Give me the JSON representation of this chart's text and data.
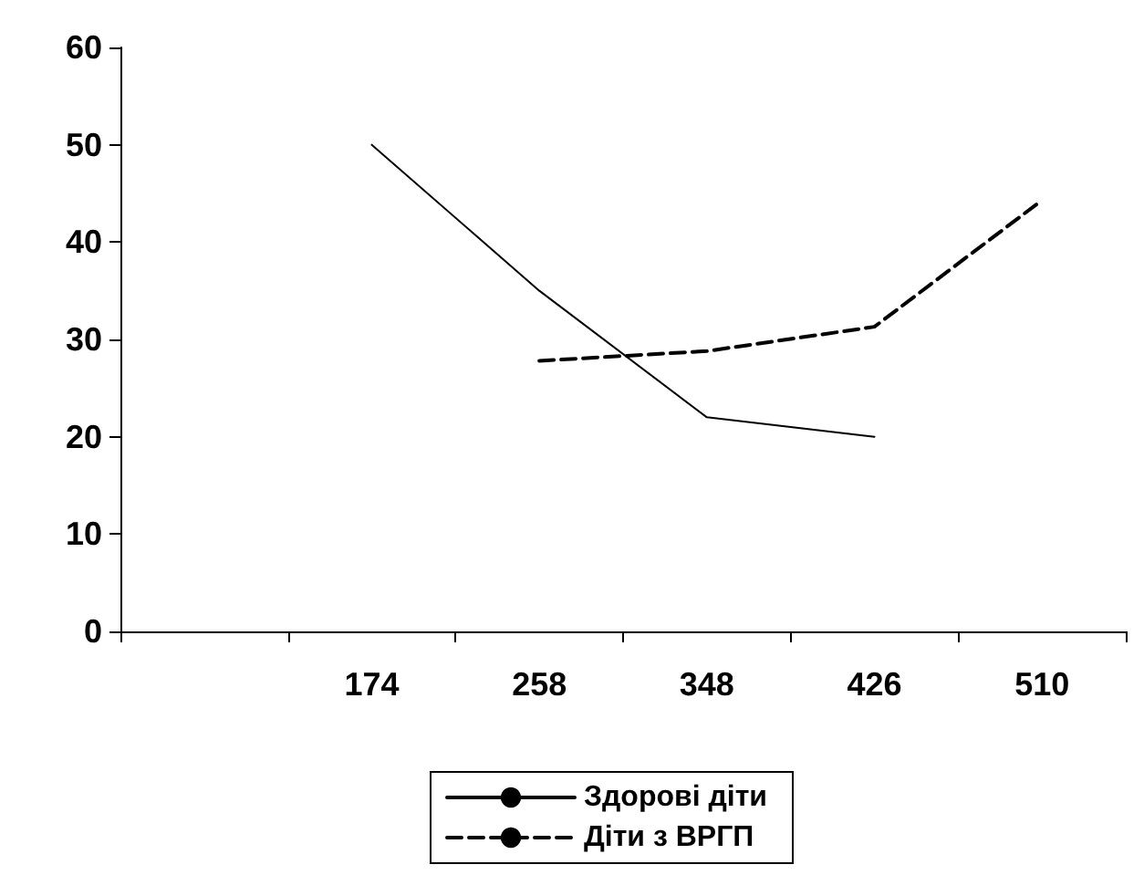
{
  "chart_data": {
    "type": "line",
    "categories": [
      null,
      "174",
      "258",
      "348",
      "426",
      "510"
    ],
    "series": [
      {
        "name": "Здорові діти",
        "color": "#000000",
        "line_style": "solid",
        "values": [
          null,
          50,
          35,
          22,
          20,
          null
        ]
      },
      {
        "name": "Діти з ВРГП",
        "color": "#000000",
        "line_style": "dashed",
        "values": [
          null,
          null,
          27.8,
          28.8,
          31.3,
          44.3
        ]
      }
    ],
    "ylim": [
      0,
      60
    ],
    "yticks": [
      0,
      10,
      20,
      30,
      40,
      50,
      60
    ],
    "grid": false,
    "legend": "bottom",
    "marker": "none"
  }
}
